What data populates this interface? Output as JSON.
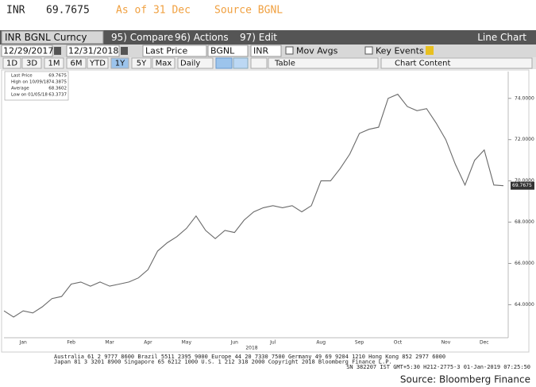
{
  "header": {
    "ticker": "INR",
    "price": "69.7675",
    "as_of": "As of 31 Dec",
    "source": "Source BGNL"
  },
  "toolbar": {
    "security": "INR BGNL Curncy",
    "compare": "95) Compare",
    "actions": "96) Actions",
    "edit": "97) Edit",
    "view": "Line Chart",
    "start_date": "12/29/2017",
    "end_date": "12/31/2018",
    "field": "Last Price",
    "source": "BGNL",
    "currency": "INR",
    "mov_avgs": "Mov Avgs",
    "key_events": "Key Events",
    "ranges": [
      "1D",
      "3D",
      "1M",
      "6M",
      "YTD",
      "1Y",
      "5Y",
      "Max"
    ],
    "frequency": "Daily",
    "table": "Table",
    "chart_content": "Chart Content"
  },
  "legend": [
    {
      "label": "Last Price",
      "value": "69.7675"
    },
    {
      "label": "High on 10/09/18",
      "value": "74.3875"
    },
    {
      "label": "Average",
      "value": "68.3602"
    },
    {
      "label": "Low on 01/05/18",
      "value": "63.3737"
    }
  ],
  "chart_data": {
    "type": "line",
    "categories": [
      null,
      null,
      "Jan",
      null,
      null,
      null,
      null,
      "Feb",
      null,
      null,
      null,
      "Mar",
      null,
      null,
      null,
      "Apr",
      null,
      null,
      null,
      "May",
      null,
      null,
      null,
      null,
      "Jun",
      null,
      null,
      null,
      "Jul",
      null,
      null,
      null,
      null,
      "Aug",
      null,
      null,
      null,
      "Sep",
      null,
      null,
      null,
      "Oct",
      null,
      null,
      null,
      null,
      "Nov",
      null,
      null,
      null,
      "Dec",
      null,
      null
    ],
    "xlabel": "2018",
    "series": [
      {
        "name": "Last Price",
        "color": "#6a6a6a",
        "values": [
          63.7,
          63.4,
          63.7,
          63.6,
          63.9,
          64.3,
          64.4,
          65.0,
          65.1,
          64.9,
          65.1,
          64.9,
          65.0,
          65.1,
          65.3,
          65.7,
          66.6,
          67.0,
          67.3,
          67.7,
          68.3,
          67.6,
          67.2,
          67.6,
          67.5,
          68.1,
          68.5,
          68.7,
          68.8,
          68.7,
          68.8,
          68.5,
          68.8,
          70.0,
          70.0,
          70.6,
          71.3,
          72.3,
          72.5,
          72.6,
          74.0,
          74.2,
          73.6,
          73.4,
          73.5,
          72.8,
          72.0,
          70.8,
          69.8,
          71.0,
          71.5,
          69.8,
          69.7675
        ]
      }
    ],
    "ylim": [
      62.4,
      75.3
    ],
    "yticks": [
      {
        "value": 64,
        "label": "64.0000"
      },
      {
        "value": 66,
        "label": "66.0000"
      },
      {
        "value": 68,
        "label": "68.0000"
      },
      {
        "value": 70,
        "label": "70.0000"
      },
      {
        "value": 72,
        "label": "72.0000"
      },
      {
        "value": 74,
        "label": "74.0000"
      }
    ],
    "grid": false
  },
  "footer": [
    "Australia 61 2 9777 8600 Brazil 5511 2395 9000 Europe 44 20 7330 7500 Germany 49 69 9204 1210 Hong Kong 852 2977 6000",
    "Japan 81 3 3201 8900         Singapore 65 6212 1000         U.S. 1 212 318 2000         Copyright 2018 Bloomberg Finance L.P.",
    "SN 382207 IST  GMT+5:30 H212-2775-3 01-Jan-2019 07:25:50"
  ],
  "credit": "Source: Bloomberg Finance"
}
